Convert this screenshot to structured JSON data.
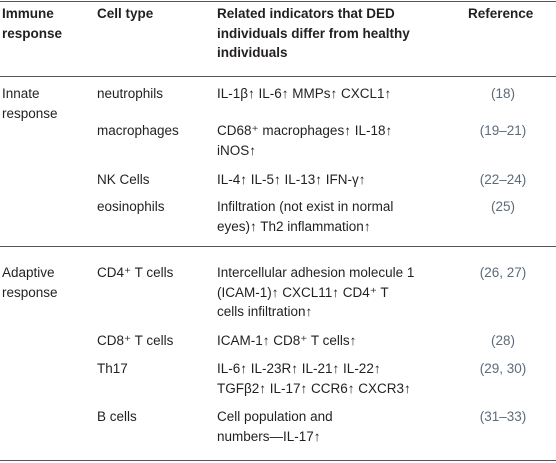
{
  "header": {
    "immune_response": [
      "Immune",
      "response"
    ],
    "cell_type": "Cell type",
    "indicators": [
      "Related indicators that DED",
      "individuals differ from healthy",
      "individuals"
    ],
    "reference": "Reference"
  },
  "sections": [
    {
      "label": [
        "Innate",
        "response"
      ],
      "rows": [
        {
          "cell_type": "neutrophils",
          "indicators": [
            "IL-1β↑ IL-6↑ MMPs↑ CXCL1↑"
          ],
          "reference": "(18)"
        },
        {
          "cell_type": "macrophages",
          "indicators": [
            "CD68⁺ macrophages↑ IL-18↑",
            "iNOS↑"
          ],
          "reference": "(19–21)"
        },
        {
          "cell_type": "NK Cells",
          "indicators": [
            "IL-4↑ IL-5↑ IL-13↑ IFN-γ↑"
          ],
          "reference": "(22–24)"
        },
        {
          "cell_type": "eosinophils",
          "indicators": [
            "Infiltration (not exist in normal",
            "eyes)↑ Th2 inflammation↑"
          ],
          "reference": "(25)"
        }
      ]
    },
    {
      "label": [
        "Adaptive",
        "response"
      ],
      "rows": [
        {
          "cell_type": "CD4⁺ T cells",
          "indicators": [
            "Intercellular adhesion molecule 1",
            "(ICAM-1)↑ CXCL11↑ CD4⁺ T",
            "cells infiltration↑"
          ],
          "reference": "(26, 27)"
        },
        {
          "cell_type": "CD8⁺ T cells",
          "indicators": [
            "ICAM-1↑ CD8⁺ T cells↑"
          ],
          "reference": "(28)"
        },
        {
          "cell_type": "Th17",
          "indicators": [
            "IL-6↑ IL-23R↑ IL-21↑ IL-22↑",
            "TGFβ2↑ IL-17↑ CCR6↑ CXCR3↑"
          ],
          "reference": "(29, 30)"
        },
        {
          "cell_type": "B cells",
          "indicators": [
            "Cell population and",
            "numbers—IL-17↑"
          ],
          "reference": "(31–33)"
        }
      ]
    }
  ]
}
